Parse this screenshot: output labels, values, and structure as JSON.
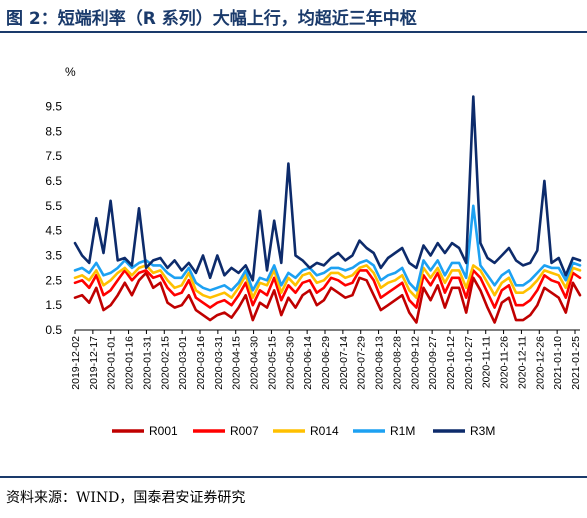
{
  "header": {
    "title": "图 2：短端利率（R 系列）大幅上行，均超近三年中枢"
  },
  "footer": {
    "source": "资料来源：WIND，国泰君安证券研究"
  },
  "chart_data": {
    "type": "line",
    "ylabel": "%",
    "ylim": [
      0.5,
      10.0
    ],
    "yticks": [
      0.5,
      1.5,
      2.5,
      3.5,
      4.5,
      5.5,
      6.5,
      7.5,
      8.5,
      9.5
    ],
    "x_tick_labels": [
      "2019-12-02",
      "2019-12-17",
      "2020-01-01",
      "2020-01-16",
      "2020-01-31",
      "2020-02-15",
      "2020-03-01",
      "2020-03-16",
      "2020-03-31",
      "2020-04-15",
      "2020-04-30",
      "2020-05-15",
      "2020-05-30",
      "2020-06-14",
      "2020-06-29",
      "2020-07-14",
      "2020-07-29",
      "2020-08-13",
      "2020-08-28",
      "2020-09-12",
      "2020-09-27",
      "2020-10-12",
      "2020-10-27",
      "2020-11-11",
      "2020-11-26",
      "2020-12-11",
      "2020-12-26",
      "2021-01-10",
      "2021-01-25"
    ],
    "legend_position": "bottom",
    "series": [
      {
        "name": "R001",
        "color": "#c00000",
        "values": [
          1.8,
          1.9,
          1.6,
          2.2,
          1.3,
          1.5,
          1.9,
          2.4,
          1.9,
          2.5,
          2.8,
          2.2,
          2.4,
          1.6,
          1.4,
          1.5,
          1.9,
          1.3,
          1.1,
          0.9,
          1.1,
          1.2,
          1.0,
          1.4,
          1.9,
          0.9,
          1.6,
          1.4,
          2.1,
          1.1,
          1.8,
          1.4,
          1.9,
          2.1,
          1.5,
          1.7,
          2.2,
          2.0,
          1.8,
          1.9,
          2.6,
          2.5,
          1.9,
          1.3,
          1.5,
          1.7,
          1.9,
          1.2,
          0.8,
          2.2,
          1.7,
          2.3,
          1.4,
          2.2,
          2.2,
          1.2,
          2.6,
          2.1,
          1.4,
          0.8,
          1.6,
          1.8,
          0.9,
          0.9,
          1.1,
          1.5,
          2.2,
          2.0,
          1.8,
          1.2,
          2.4,
          1.9
        ]
      },
      {
        "name": "R007",
        "color": "#ff0000",
        "values": [
          2.4,
          2.5,
          2.2,
          2.7,
          1.9,
          2.1,
          2.5,
          2.9,
          2.5,
          2.8,
          2.9,
          2.6,
          2.7,
          2.2,
          1.9,
          2.0,
          2.5,
          1.8,
          1.6,
          1.4,
          1.6,
          1.7,
          1.5,
          1.9,
          2.4,
          1.5,
          2.1,
          1.9,
          2.6,
          1.7,
          2.3,
          2.0,
          2.4,
          2.5,
          2.0,
          2.2,
          2.6,
          2.5,
          2.3,
          2.4,
          2.9,
          2.9,
          2.5,
          1.8,
          2.0,
          2.2,
          2.4,
          1.7,
          1.4,
          2.7,
          2.3,
          2.8,
          2.0,
          2.6,
          2.6,
          1.8,
          2.9,
          2.6,
          2.0,
          1.4,
          2.1,
          2.3,
          1.5,
          1.5,
          1.7,
          2.1,
          2.7,
          2.5,
          2.4,
          1.8,
          2.8,
          2.6
        ]
      },
      {
        "name": "R014",
        "color": "#ffc000",
        "values": [
          2.6,
          2.7,
          2.5,
          2.9,
          2.3,
          2.5,
          2.8,
          3.0,
          2.7,
          3.0,
          3.1,
          2.8,
          2.9,
          2.5,
          2.2,
          2.3,
          2.8,
          2.1,
          1.9,
          1.8,
          1.9,
          2.0,
          1.8,
          2.2,
          2.7,
          1.8,
          2.4,
          2.3,
          2.9,
          2.0,
          2.6,
          2.3,
          2.7,
          2.8,
          2.4,
          2.5,
          2.8,
          2.8,
          2.6,
          2.7,
          3.0,
          3.1,
          2.8,
          2.2,
          2.4,
          2.5,
          2.7,
          2.1,
          1.8,
          3.0,
          2.6,
          3.0,
          2.4,
          2.9,
          2.9,
          2.2,
          3.1,
          2.9,
          2.4,
          1.9,
          2.4,
          2.6,
          2.0,
          2.0,
          2.2,
          2.5,
          2.9,
          2.8,
          2.7,
          2.2,
          3.0,
          2.9
        ]
      },
      {
        "name": "R1M",
        "color": "#1da1f2",
        "values": [
          2.9,
          3.0,
          2.8,
          3.2,
          2.7,
          2.8,
          3.0,
          3.3,
          3.0,
          3.2,
          3.3,
          3.1,
          3.1,
          2.8,
          2.6,
          2.6,
          3.0,
          2.4,
          2.2,
          2.1,
          2.2,
          2.3,
          2.1,
          2.4,
          2.9,
          2.1,
          2.6,
          2.5,
          3.1,
          2.3,
          2.8,
          2.6,
          2.9,
          3.0,
          2.7,
          2.8,
          3.0,
          3.0,
          2.9,
          3.0,
          3.2,
          3.3,
          3.1,
          2.5,
          2.7,
          2.8,
          3.0,
          2.4,
          2.1,
          3.3,
          2.9,
          3.3,
          2.7,
          3.2,
          3.2,
          2.6,
          5.5,
          3.1,
          2.7,
          2.3,
          2.7,
          2.9,
          2.3,
          2.3,
          2.5,
          2.8,
          3.1,
          3.0,
          3.0,
          2.5,
          3.2,
          3.1
        ]
      },
      {
        "name": "R3M",
        "color": "#0d2b6b",
        "values": [
          4.0,
          3.5,
          3.2,
          5.0,
          3.6,
          5.7,
          3.3,
          3.4,
          3.1,
          5.4,
          3.0,
          3.3,
          3.4,
          3.0,
          3.3,
          2.9,
          3.2,
          2.8,
          3.5,
          2.6,
          3.5,
          2.7,
          3.0,
          2.8,
          3.1,
          2.5,
          5.3,
          2.9,
          4.9,
          3.2,
          7.2,
          3.5,
          3.3,
          3.0,
          3.2,
          3.1,
          3.4,
          3.6,
          3.3,
          3.5,
          4.1,
          3.8,
          3.6,
          3.0,
          3.4,
          3.6,
          3.8,
          3.2,
          3.0,
          3.9,
          3.5,
          4.0,
          3.6,
          4.0,
          3.8,
          3.2,
          9.9,
          4.0,
          3.4,
          3.2,
          3.5,
          3.8,
          3.3,
          3.1,
          3.2,
          3.7,
          6.5,
          3.2,
          3.4,
          2.7,
          3.4,
          3.3
        ]
      }
    ]
  }
}
